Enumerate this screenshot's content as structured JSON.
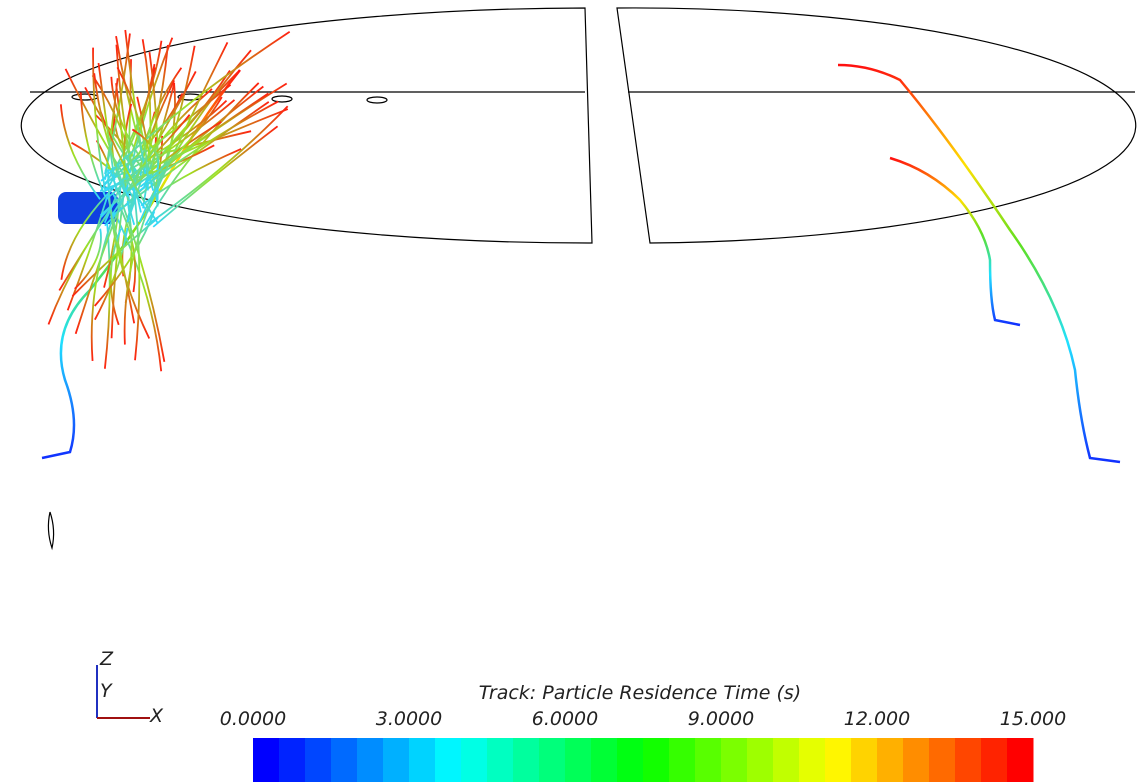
{
  "triad": {
    "z": "Z",
    "y": "Y",
    "x": "X"
  },
  "colorbar": {
    "title": "Track: Particle Residence Time (s)",
    "range": [
      0,
      15
    ],
    "ticks": [
      {
        "value": 0,
        "label": "0.0000"
      },
      {
        "value": 3,
        "label": "3.0000"
      },
      {
        "value": 6,
        "label": "6.0000"
      },
      {
        "value": 9,
        "label": "9.0000"
      },
      {
        "value": 12,
        "label": "12.000"
      },
      {
        "value": 15,
        "label": "15.000"
      }
    ]
  }
}
